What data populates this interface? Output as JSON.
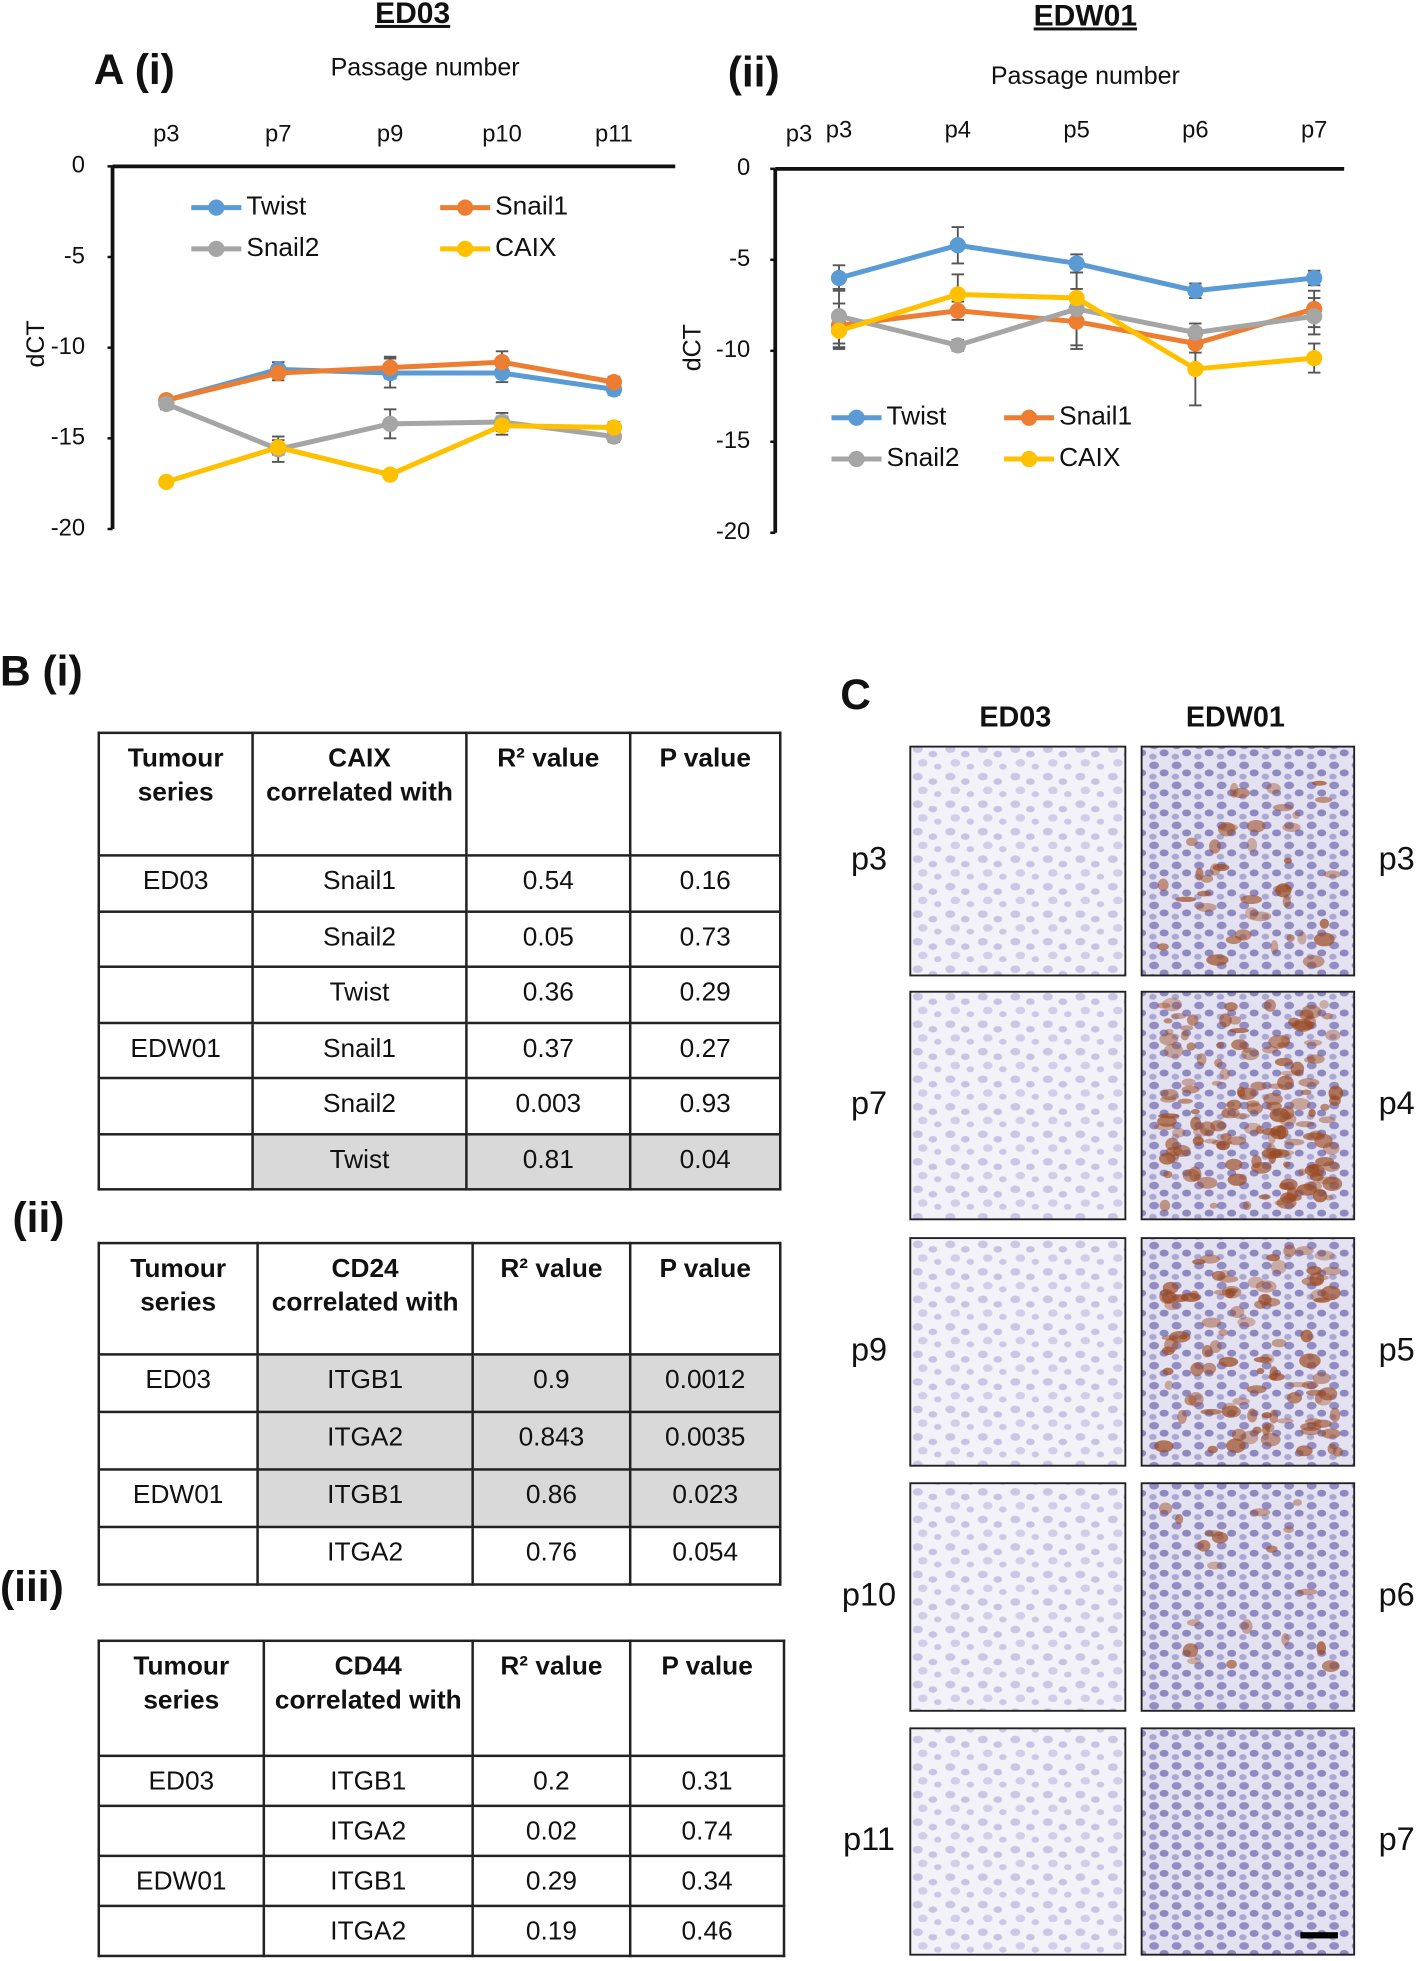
{
  "chart_data": [
    {
      "type": "line",
      "title": "ED03",
      "panel_label": "A (i)",
      "x_label": "Passage number",
      "y_label": "dCT",
      "categories": [
        "p3",
        "p7",
        "p9",
        "p10",
        "p11"
      ],
      "ylim": [
        -20,
        0
      ],
      "yticks": [
        0,
        -5,
        -10,
        -15,
        -20
      ],
      "legend": "top",
      "series": [
        {
          "name": "Twist",
          "color": "#5b9bd5",
          "values": [
            -12.9,
            -11.2,
            -11.4,
            -11.4,
            -12.3
          ],
          "errors": [
            0.2,
            0.4,
            0.8,
            0.5,
            0.3
          ]
        },
        {
          "name": "Snail1",
          "color": "#ed7d31",
          "values": [
            -12.9,
            -11.4,
            -11.1,
            -10.8,
            -11.9
          ],
          "errors": [
            0.2,
            0.4,
            0.6,
            0.6,
            0.3
          ]
        },
        {
          "name": "Snail2",
          "color": "#a5a5a5",
          "values": [
            -13.1,
            -15.6,
            -14.2,
            -14.1,
            -14.9
          ],
          "errors": [
            0.3,
            0.7,
            0.8,
            0.5,
            0.3
          ]
        },
        {
          "name": "CAIX",
          "color": "#ffc000",
          "values": [
            -17.4,
            -15.5,
            -17.0,
            -14.3,
            -14.4
          ],
          "errors": [
            0.2,
            0.4,
            0.2,
            0.5,
            0.3
          ]
        }
      ]
    },
    {
      "type": "line",
      "title": "EDW01",
      "panel_label": "(ii)",
      "x_label": "Passage number",
      "y_label": "dCT",
      "corner_label": "p3",
      "categories": [
        "p3",
        "p4",
        "p5",
        "p6",
        "p7"
      ],
      "ylim": [
        -20,
        0
      ],
      "yticks": [
        0,
        -5,
        -10,
        -15,
        -20
      ],
      "legend": "bottom",
      "series": [
        {
          "name": "Twist",
          "color": "#5b9bd5",
          "values": [
            -6.0,
            -4.2,
            -5.2,
            -6.7,
            -6.0
          ],
          "errors": [
            0.7,
            1.0,
            0.5,
            0.4,
            0.4
          ]
        },
        {
          "name": "Snail1",
          "color": "#ed7d31",
          "values": [
            -8.6,
            -7.8,
            -8.4,
            -9.6,
            -7.7
          ],
          "errors": [
            1.2,
            0.5,
            1.5,
            0.5,
            1.0
          ]
        },
        {
          "name": "Snail2",
          "color": "#a5a5a5",
          "values": [
            -8.1,
            -9.7,
            -7.7,
            -9.0,
            -8.1
          ],
          "errors": [
            1.5,
            0.3,
            2.0,
            0.5,
            1.0
          ]
        },
        {
          "name": "CAIX",
          "color": "#ffc000",
          "values": [
            -8.9,
            -6.9,
            -7.1,
            -11.0,
            -10.4
          ],
          "errors": [
            1.0,
            1.1,
            0.5,
            2.0,
            0.8
          ]
        }
      ]
    }
  ],
  "tables": [
    {
      "label": "B (i)",
      "header": [
        "Tumour series",
        "CAIX correlated with",
        "R² value",
        "P value"
      ],
      "rows": [
        [
          "ED03",
          "Snail1",
          "0.54",
          "0.16"
        ],
        [
          null,
          "Snail2",
          "0.05",
          "0.73"
        ],
        [
          null,
          "Twist",
          "0.36",
          "0.29"
        ],
        [
          "EDW01",
          "Snail1",
          "0.37",
          "0.27"
        ],
        [
          null,
          "Snail2",
          "0.003",
          "0.93"
        ],
        [
          null,
          "Twist",
          "0.81",
          "0.04"
        ]
      ],
      "highlighted_rows": [
        5
      ]
    },
    {
      "label": "(ii)",
      "header": [
        "Tumour series",
        "CD24 correlated with",
        "R² value",
        "P value"
      ],
      "rows": [
        [
          "ED03",
          "ITGB1",
          "0.9",
          "0.0012"
        ],
        [
          null,
          "ITGA2",
          "0.843",
          "0.0035"
        ],
        [
          "EDW01",
          "ITGB1",
          "0.86",
          "0.023"
        ],
        [
          null,
          "ITGA2",
          "0.76",
          "0.054"
        ]
      ],
      "highlighted_rows": [
        0,
        1,
        2
      ]
    },
    {
      "label": "(iii)",
      "header": [
        "Tumour series",
        "CD44 correlated with",
        "R² value",
        "P value"
      ],
      "rows": [
        [
          "ED03",
          "ITGB1",
          "0.2",
          "0.31"
        ],
        [
          null,
          "ITGA2",
          "0.02",
          "0.74"
        ],
        [
          "EDW01",
          "ITGB1",
          "0.29",
          "0.34"
        ],
        [
          null,
          "ITGA2",
          "0.19",
          "0.46"
        ]
      ],
      "highlighted_rows": []
    }
  ],
  "histology": {
    "label": "C",
    "columns": [
      "ED03",
      "EDW01"
    ],
    "left_row_labels": [
      "p3",
      "p7",
      "p9",
      "p10",
      "p11"
    ],
    "right_row_labels": [
      "p3",
      "p4",
      "p5",
      "p6",
      "p7"
    ]
  }
}
